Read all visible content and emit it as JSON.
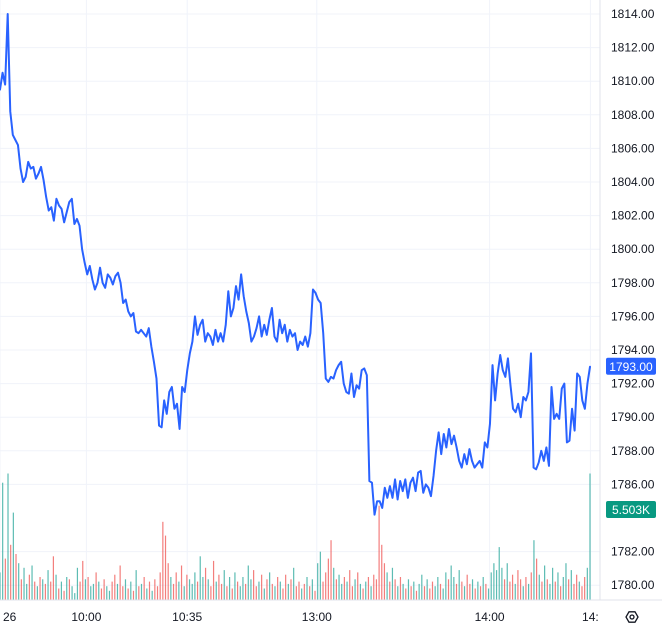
{
  "chart_data": {
    "type": "line",
    "title": "",
    "xlabel": "",
    "ylabel": "",
    "ylim": [
      1778.4,
      1814.6
    ],
    "y_ticks": [
      1780,
      1782,
      1786,
      1788,
      1790,
      1792,
      1794,
      1796,
      1798,
      1800,
      1802,
      1804,
      1806,
      1808,
      1810,
      1812,
      1814
    ],
    "x_ticks": [
      {
        "label": "26",
        "t": 0
      },
      {
        "label": "10:00",
        "t": 30
      },
      {
        "label": "10:35",
        "t": 65
      },
      {
        "label": "13:00",
        "t": 110
      },
      {
        "label": "14:00",
        "t": 170
      },
      {
        "label": "14:",
        "t": 205
      }
    ],
    "grid": true,
    "line_color": "#2962ff",
    "up_color": "#26a69a",
    "down_color": "#ef5350",
    "last_price_label": "1793.00",
    "last_price": 1793.0,
    "volume_label": "5.503K",
    "series": [
      {
        "values": [
          1809.5,
          1810.5,
          1809.8,
          1814.0,
          1808.2,
          1806.8,
          1806.5,
          1806.2,
          1804.8,
          1804.0,
          1804.3,
          1805.2,
          1804.8,
          1804.9,
          1804.2,
          1804.5,
          1804.9,
          1804.1,
          1803.1,
          1802.3,
          1802.5,
          1801.7,
          1803.0,
          1802.6,
          1802.4,
          1801.6,
          1802.2,
          1802.8,
          1803.0,
          1801.5,
          1801.8,
          1801.4,
          1800.0,
          1799.2,
          1798.5,
          1799.0,
          1798.2,
          1797.6,
          1798.0,
          1798.9,
          1798.0,
          1797.7,
          1798.5,
          1798.3,
          1797.9,
          1798.4,
          1798.6,
          1798.0,
          1796.8,
          1797.0,
          1796.3,
          1796.0,
          1796.2,
          1795.1,
          1795.0,
          1795.2,
          1795.0,
          1794.8,
          1795.3,
          1794.2,
          1793.3,
          1792.3,
          1789.5,
          1789.4,
          1791.0,
          1790.2,
          1791.5,
          1791.8,
          1790.5,
          1790.8,
          1789.3,
          1791.8,
          1791.5,
          1792.8,
          1793.8,
          1794.5,
          1796.0,
          1794.9,
          1795.5,
          1795.8,
          1794.5,
          1795.0,
          1794.8,
          1794.3,
          1795.2,
          1794.5,
          1795.0,
          1794.5,
          1795.5,
          1797.5,
          1796.0,
          1796.5,
          1797.8,
          1797.0,
          1798.5,
          1797.2,
          1796.3,
          1795.6,
          1794.5,
          1794.8,
          1795.3,
          1796.0,
          1794.8,
          1795.5,
          1794.9,
          1795.8,
          1796.5,
          1794.8,
          1794.5,
          1795.8,
          1795.0,
          1795.5,
          1794.5,
          1795.2,
          1794.8,
          1795.0,
          1794.0,
          1794.5,
          1794.3,
          1794.8,
          1794.2,
          1795.0,
          1797.6,
          1797.4,
          1797.0,
          1796.8,
          1795.0,
          1792.3,
          1792.1,
          1792.4,
          1792.3,
          1792.8,
          1793.1,
          1793.3,
          1792.0,
          1791.5,
          1791.4,
          1792.6,
          1791.2,
          1791.9,
          1791.7,
          1792.8,
          1792.9,
          1792.5,
          1786.2,
          1786.1,
          1784.2,
          1785.0,
          1785.0,
          1784.6,
          1785.8,
          1785.2,
          1785.9,
          1785.2,
          1786.3,
          1785.1,
          1786.2,
          1785.6,
          1786.3,
          1785.2,
          1786.1,
          1786.4,
          1785.6,
          1786.7,
          1786.8,
          1785.5,
          1786.0,
          1785.8,
          1785.3,
          1786.5,
          1788.0,
          1789.1,
          1787.8,
          1789.0,
          1788.2,
          1789.3,
          1788.4,
          1788.9,
          1788.2,
          1787.4,
          1787.0,
          1787.8,
          1787.2,
          1788.1,
          1787.4,
          1787.0,
          1787.2,
          1787.4,
          1787.0,
          1788.5,
          1788.2,
          1789.6,
          1793.1,
          1791.0,
          1792.6,
          1793.7,
          1792.8,
          1792.4,
          1793.5,
          1791.9,
          1790.5,
          1790.3,
          1790.8,
          1790.0,
          1791.2,
          1791.0,
          1791.5,
          1793.8,
          1787.0,
          1786.9,
          1787.3,
          1788.0,
          1787.4,
          1788.2,
          1787.1,
          1791.8,
          1789.9,
          1790.2,
          1789.9,
          1791.7,
          1792.0,
          1788.5,
          1788.6,
          1790.5,
          1789.2,
          1792.6,
          1792.4,
          1791.0,
          1790.5,
          1792.0,
          1793.0
        ]
      }
    ],
    "volume_scale_max": 6.0,
    "volume": [
      {
        "v": 1.2,
        "up": true
      },
      {
        "v": 5.1,
        "up": true
      },
      {
        "v": 1.8,
        "up": false
      },
      {
        "v": 5.5,
        "up": true
      },
      {
        "v": 2.4,
        "up": false
      },
      {
        "v": 3.8,
        "up": true
      },
      {
        "v": 2.0,
        "up": false
      },
      {
        "v": 1.6,
        "up": true
      },
      {
        "v": 0.9,
        "up": false
      },
      {
        "v": 1.4,
        "up": true
      },
      {
        "v": 0.7,
        "up": true
      },
      {
        "v": 1.1,
        "up": false
      },
      {
        "v": 1.5,
        "up": true
      },
      {
        "v": 0.8,
        "up": false
      },
      {
        "v": 0.6,
        "up": true
      },
      {
        "v": 1.0,
        "up": false
      },
      {
        "v": 0.9,
        "up": true
      },
      {
        "v": 0.7,
        "up": false
      },
      {
        "v": 1.3,
        "up": true
      },
      {
        "v": 0.8,
        "up": false
      },
      {
        "v": 1.9,
        "up": false
      },
      {
        "v": 1.1,
        "up": true
      },
      {
        "v": 0.5,
        "up": false
      },
      {
        "v": 0.8,
        "up": true
      },
      {
        "v": 0.4,
        "up": false
      },
      {
        "v": 1.0,
        "up": true
      },
      {
        "v": 0.9,
        "up": false
      },
      {
        "v": 0.6,
        "up": true
      },
      {
        "v": 0.3,
        "up": true
      },
      {
        "v": 1.4,
        "up": true
      },
      {
        "v": 0.8,
        "up": false
      },
      {
        "v": 1.7,
        "up": false
      },
      {
        "v": 0.9,
        "up": true
      },
      {
        "v": 1.0,
        "up": false
      },
      {
        "v": 0.6,
        "up": true
      },
      {
        "v": 0.7,
        "up": true
      },
      {
        "v": 1.2,
        "up": false
      },
      {
        "v": 0.8,
        "up": true
      },
      {
        "v": 0.5,
        "up": false
      },
      {
        "v": 0.9,
        "up": false
      },
      {
        "v": 0.6,
        "up": true
      },
      {
        "v": 0.4,
        "up": true
      },
      {
        "v": 0.8,
        "up": false
      },
      {
        "v": 1.1,
        "up": false
      },
      {
        "v": 0.7,
        "up": true
      },
      {
        "v": 1.5,
        "up": false
      },
      {
        "v": 0.6,
        "up": false
      },
      {
        "v": 0.9,
        "up": true
      },
      {
        "v": 0.5,
        "up": false
      },
      {
        "v": 0.8,
        "up": true
      },
      {
        "v": 0.4,
        "up": false
      },
      {
        "v": 1.3,
        "up": true
      },
      {
        "v": 0.6,
        "up": false
      },
      {
        "v": 0.7,
        "up": true
      },
      {
        "v": 1.0,
        "up": false
      },
      {
        "v": 0.5,
        "up": true
      },
      {
        "v": 0.8,
        "up": false
      },
      {
        "v": 0.4,
        "up": true
      },
      {
        "v": 0.9,
        "up": false
      },
      {
        "v": 0.6,
        "up": false
      },
      {
        "v": 1.2,
        "up": false
      },
      {
        "v": 3.4,
        "up": false
      },
      {
        "v": 2.8,
        "up": false
      },
      {
        "v": 1.6,
        "up": false
      },
      {
        "v": 1.0,
        "up": true
      },
      {
        "v": 0.7,
        "up": false
      },
      {
        "v": 1.2,
        "up": false
      },
      {
        "v": 0.8,
        "up": true
      },
      {
        "v": 1.5,
        "up": false
      },
      {
        "v": 0.6,
        "up": true
      },
      {
        "v": 1.1,
        "up": false
      },
      {
        "v": 0.9,
        "up": true
      },
      {
        "v": 0.7,
        "up": true
      },
      {
        "v": 1.2,
        "up": true
      },
      {
        "v": 0.8,
        "up": false
      },
      {
        "v": 1.9,
        "up": true
      },
      {
        "v": 1.0,
        "up": true
      },
      {
        "v": 1.4,
        "up": false
      },
      {
        "v": 0.9,
        "up": true
      },
      {
        "v": 0.6,
        "up": false
      },
      {
        "v": 1.7,
        "up": false
      },
      {
        "v": 0.8,
        "up": true
      },
      {
        "v": 1.1,
        "up": false
      },
      {
        "v": 0.7,
        "up": false
      },
      {
        "v": 1.3,
        "up": true
      },
      {
        "v": 0.6,
        "up": false
      },
      {
        "v": 1.0,
        "up": true
      },
      {
        "v": 0.5,
        "up": false
      },
      {
        "v": 1.2,
        "up": true
      },
      {
        "v": 0.8,
        "up": false
      },
      {
        "v": 0.6,
        "up": true
      },
      {
        "v": 1.0,
        "up": true
      },
      {
        "v": 0.7,
        "up": false
      },
      {
        "v": 1.5,
        "up": true
      },
      {
        "v": 0.9,
        "up": true
      },
      {
        "v": 1.3,
        "up": false
      },
      {
        "v": 0.6,
        "up": false
      },
      {
        "v": 0.8,
        "up": true
      },
      {
        "v": 1.1,
        "up": false
      },
      {
        "v": 0.5,
        "up": true
      },
      {
        "v": 0.9,
        "up": false
      },
      {
        "v": 1.2,
        "up": true
      },
      {
        "v": 0.7,
        "up": false
      },
      {
        "v": 0.6,
        "up": true
      },
      {
        "v": 1.0,
        "up": false
      },
      {
        "v": 0.8,
        "up": true
      },
      {
        "v": 0.5,
        "up": false
      },
      {
        "v": 1.1,
        "up": false
      },
      {
        "v": 0.7,
        "up": true
      },
      {
        "v": 0.9,
        "up": false
      },
      {
        "v": 1.4,
        "up": true
      },
      {
        "v": 0.6,
        "up": false
      },
      {
        "v": 0.8,
        "up": false
      },
      {
        "v": 0.5,
        "up": true
      },
      {
        "v": 0.7,
        "up": false
      },
      {
        "v": 1.0,
        "up": true
      },
      {
        "v": 0.6,
        "up": false
      },
      {
        "v": 0.9,
        "up": true
      },
      {
        "v": 0.4,
        "up": false
      },
      {
        "v": 1.6,
        "up": true
      },
      {
        "v": 2.1,
        "up": true
      },
      {
        "v": 0.8,
        "up": false
      },
      {
        "v": 1.2,
        "up": false
      },
      {
        "v": 1.8,
        "up": false
      },
      {
        "v": 2.6,
        "up": false
      },
      {
        "v": 1.4,
        "up": true
      },
      {
        "v": 0.9,
        "up": false
      },
      {
        "v": 1.1,
        "up": true
      },
      {
        "v": 0.7,
        "up": true
      },
      {
        "v": 1.0,
        "up": false
      },
      {
        "v": 0.8,
        "up": true
      },
      {
        "v": 1.3,
        "up": false
      },
      {
        "v": 0.6,
        "up": false
      },
      {
        "v": 0.9,
        "up": true
      },
      {
        "v": 1.2,
        "up": false
      },
      {
        "v": 0.7,
        "up": true
      },
      {
        "v": 0.5,
        "up": false
      },
      {
        "v": 0.8,
        "up": true
      },
      {
        "v": 1.0,
        "up": false
      },
      {
        "v": 0.6,
        "up": true
      },
      {
        "v": 1.1,
        "up": false
      },
      {
        "v": 0.9,
        "up": false
      },
      {
        "v": 4.1,
        "up": false
      },
      {
        "v": 2.4,
        "up": false
      },
      {
        "v": 1.6,
        "up": false
      },
      {
        "v": 1.2,
        "up": true
      },
      {
        "v": 0.8,
        "up": false
      },
      {
        "v": 1.4,
        "up": true
      },
      {
        "v": 0.9,
        "up": false
      },
      {
        "v": 0.6,
        "up": true
      },
      {
        "v": 1.0,
        "up": false
      },
      {
        "v": 0.7,
        "up": true
      },
      {
        "v": 0.5,
        "up": false
      },
      {
        "v": 0.9,
        "up": true
      },
      {
        "v": 0.6,
        "up": false
      },
      {
        "v": 0.8,
        "up": true
      },
      {
        "v": 0.4,
        "up": false
      },
      {
        "v": 0.7,
        "up": true
      },
      {
        "v": 1.1,
        "up": true
      },
      {
        "v": 0.6,
        "up": false
      },
      {
        "v": 0.9,
        "up": true
      },
      {
        "v": 0.5,
        "up": false
      },
      {
        "v": 0.8,
        "up": false
      },
      {
        "v": 0.6,
        "up": true
      },
      {
        "v": 1.0,
        "up": true
      },
      {
        "v": 0.7,
        "up": false
      },
      {
        "v": 0.5,
        "up": true
      },
      {
        "v": 1.2,
        "up": true
      },
      {
        "v": 0.9,
        "up": false
      },
      {
        "v": 1.5,
        "up": true
      },
      {
        "v": 1.0,
        "up": true
      },
      {
        "v": 0.7,
        "up": false
      },
      {
        "v": 1.3,
        "up": true
      },
      {
        "v": 0.8,
        "up": false
      },
      {
        "v": 0.6,
        "up": true
      },
      {
        "v": 1.1,
        "up": false
      },
      {
        "v": 0.7,
        "up": false
      },
      {
        "v": 0.9,
        "up": true
      },
      {
        "v": 0.5,
        "up": false
      },
      {
        "v": 0.8,
        "up": true
      },
      {
        "v": 0.6,
        "up": false
      },
      {
        "v": 1.0,
        "up": true
      },
      {
        "v": 0.7,
        "up": false
      },
      {
        "v": 0.5,
        "up": true
      },
      {
        "v": 1.2,
        "up": true
      },
      {
        "v": 1.6,
        "up": true
      },
      {
        "v": 1.3,
        "up": true
      },
      {
        "v": 2.3,
        "up": true
      },
      {
        "v": 1.4,
        "up": true
      },
      {
        "v": 0.9,
        "up": false
      },
      {
        "v": 1.6,
        "up": true
      },
      {
        "v": 0.8,
        "up": false
      },
      {
        "v": 1.1,
        "up": false
      },
      {
        "v": 0.7,
        "up": true
      },
      {
        "v": 1.3,
        "up": false
      },
      {
        "v": 0.9,
        "up": false
      },
      {
        "v": 0.6,
        "up": true
      },
      {
        "v": 1.0,
        "up": false
      },
      {
        "v": 0.7,
        "up": true
      },
      {
        "v": 1.2,
        "up": false
      },
      {
        "v": 2.6,
        "up": true
      },
      {
        "v": 1.8,
        "up": false
      },
      {
        "v": 1.1,
        "up": true
      },
      {
        "v": 0.8,
        "up": false
      },
      {
        "v": 1.5,
        "up": true
      },
      {
        "v": 0.9,
        "up": false
      },
      {
        "v": 0.7,
        "up": true
      },
      {
        "v": 1.4,
        "up": true
      },
      {
        "v": 0.8,
        "up": false
      },
      {
        "v": 1.2,
        "up": true
      },
      {
        "v": 0.6,
        "up": false
      },
      {
        "v": 1.0,
        "up": true
      },
      {
        "v": 1.6,
        "up": true
      },
      {
        "v": 0.9,
        "up": false
      },
      {
        "v": 1.3,
        "up": true
      },
      {
        "v": 0.7,
        "up": false
      },
      {
        "v": 1.1,
        "up": false
      },
      {
        "v": 0.8,
        "up": true
      },
      {
        "v": 0.6,
        "up": false
      },
      {
        "v": 1.0,
        "up": false
      },
      {
        "v": 1.4,
        "up": true
      },
      {
        "v": 5.5,
        "up": true
      }
    ]
  },
  "toolbar": {
    "settings_icon": "hexagon-settings-icon"
  }
}
